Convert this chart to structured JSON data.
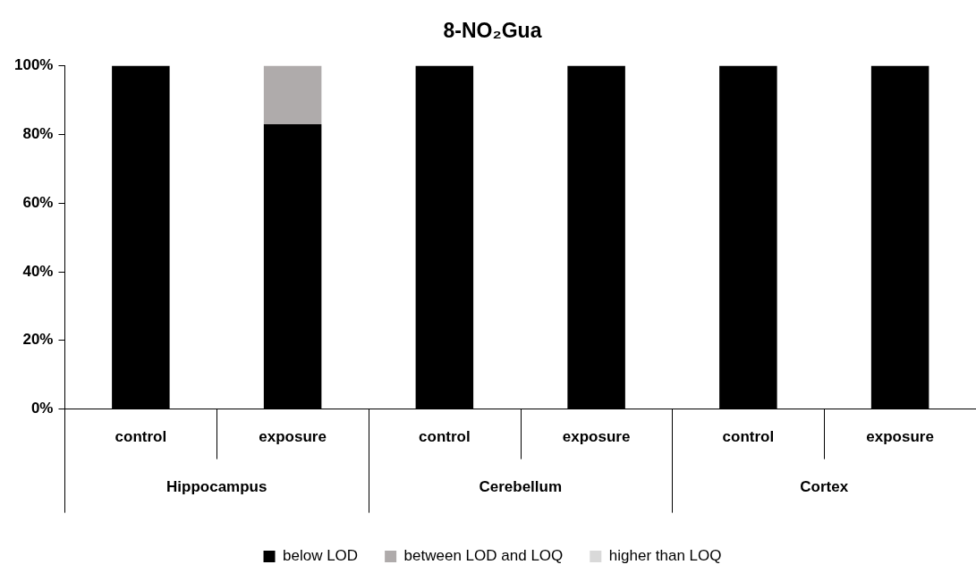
{
  "chart_data": {
    "type": "bar",
    "title": "8-NO₂Gua",
    "stacked": true,
    "categories": [
      "control",
      "exposure",
      "control",
      "exposure",
      "control",
      "exposure"
    ],
    "annotations": [
      "Hippocampus",
      "Cerebellum",
      "Cortex"
    ],
    "series": [
      {
        "name": "below LOD",
        "color": "#000000",
        "values": [
          100,
          83,
          100,
          100,
          100,
          100
        ]
      },
      {
        "name": "between LOD and LOQ",
        "color": "#afabab",
        "values": [
          0,
          17,
          0,
          0,
          0,
          0
        ]
      },
      {
        "name": "higher than LOQ",
        "color": "#d9d9d9",
        "values": [
          0,
          0,
          0,
          0,
          0,
          0
        ]
      }
    ],
    "ylim": [
      0,
      100
    ],
    "yticks": [
      {
        "value": 0,
        "label": "0%"
      },
      {
        "value": 20,
        "label": "20%"
      },
      {
        "value": 40,
        "label": "40%"
      },
      {
        "value": 60,
        "label": "60%"
      },
      {
        "value": 80,
        "label": "80%"
      },
      {
        "value": 100,
        "label": "100%"
      }
    ],
    "grid": false,
    "legend": "bottom"
  }
}
